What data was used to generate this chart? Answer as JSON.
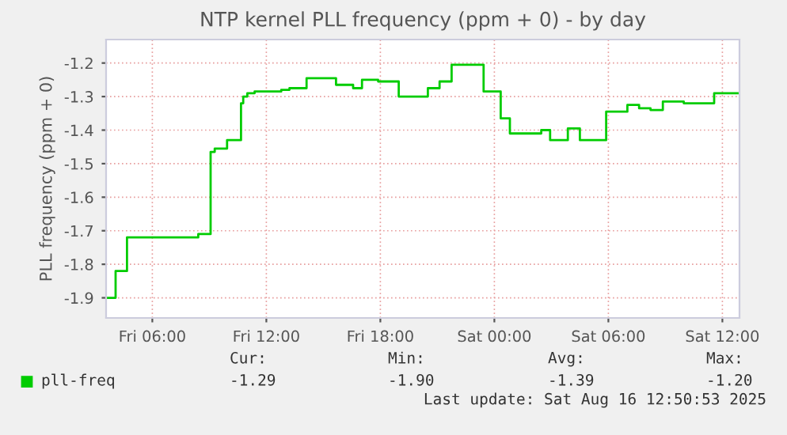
{
  "chart_data": {
    "type": "step",
    "title": "NTP kernel PLL frequency (ppm + 0) - by day",
    "ylabel": "PLL frequency (ppm + 0)",
    "x": [
      "2025-08-15T03:34",
      "2025-08-15T04:04",
      "2025-08-15T04:40",
      "2025-08-15T08:08",
      "2025-08-15T08:25",
      "2025-08-15T09:04",
      "2025-08-15T09:17",
      "2025-08-15T09:56",
      "2025-08-15T10:40",
      "2025-08-15T10:47",
      "2025-08-15T11:00",
      "2025-08-15T11:23",
      "2025-08-15T12:47",
      "2025-08-15T13:13",
      "2025-08-15T14:07",
      "2025-08-15T15:40",
      "2025-08-15T16:34",
      "2025-08-15T17:02",
      "2025-08-15T17:53",
      "2025-08-15T18:58",
      "2025-08-15T20:30",
      "2025-08-15T21:07",
      "2025-08-15T21:45",
      "2025-08-15T23:26",
      "2025-08-16T00:20",
      "2025-08-16T00:49",
      "2025-08-16T02:28",
      "2025-08-16T02:56",
      "2025-08-16T03:52",
      "2025-08-16T04:30",
      "2025-08-16T05:53",
      "2025-08-16T07:00",
      "2025-08-16T07:37",
      "2025-08-16T08:13",
      "2025-08-16T08:52",
      "2025-08-16T09:58",
      "2025-08-16T11:34",
      "2025-08-16T12:50"
    ],
    "series": [
      {
        "name": "pll-freq",
        "color": "#00cc00",
        "values": [
          -1.9,
          -1.82,
          -1.72,
          -1.72,
          -1.71,
          -1.465,
          -1.455,
          -1.43,
          -1.32,
          -1.3,
          -1.29,
          -1.285,
          -1.28,
          -1.275,
          -1.245,
          -1.265,
          -1.275,
          -1.25,
          -1.255,
          -1.3,
          -1.275,
          -1.255,
          -1.205,
          -1.285,
          -1.365,
          -1.41,
          -1.4,
          -1.43,
          -1.395,
          -1.43,
          -1.345,
          -1.325,
          -1.335,
          -1.34,
          -1.315,
          -1.32,
          -1.29,
          -1.29
        ]
      }
    ],
    "xlim": [
      "2025-08-15T03:34",
      "2025-08-16T12:54"
    ],
    "xticks": [
      {
        "value": "2025-08-15T06:00",
        "label": "Fri 06:00"
      },
      {
        "value": "2025-08-15T12:00",
        "label": "Fri 12:00"
      },
      {
        "value": "2025-08-15T18:00",
        "label": "Fri 18:00"
      },
      {
        "value": "2025-08-16T00:00",
        "label": "Sat 00:00"
      },
      {
        "value": "2025-08-16T06:00",
        "label": "Sat 06:00"
      },
      {
        "value": "2025-08-16T12:00",
        "label": "Sat 12:00"
      }
    ],
    "ylim": [
      -1.96,
      -1.13
    ],
    "yticks": [
      -1.9,
      -1.8,
      -1.7,
      -1.6,
      -1.5,
      -1.4,
      -1.3,
      -1.2
    ],
    "grid": true,
    "legend": "bottom left",
    "annotations": [
      "Cur:",
      "-1.29",
      "Min:",
      "-1.90",
      "Avg:",
      "-1.39",
      "Max:",
      "-1.20",
      "Last update: Sat Aug 16 12:50:53 2025"
    ]
  }
}
